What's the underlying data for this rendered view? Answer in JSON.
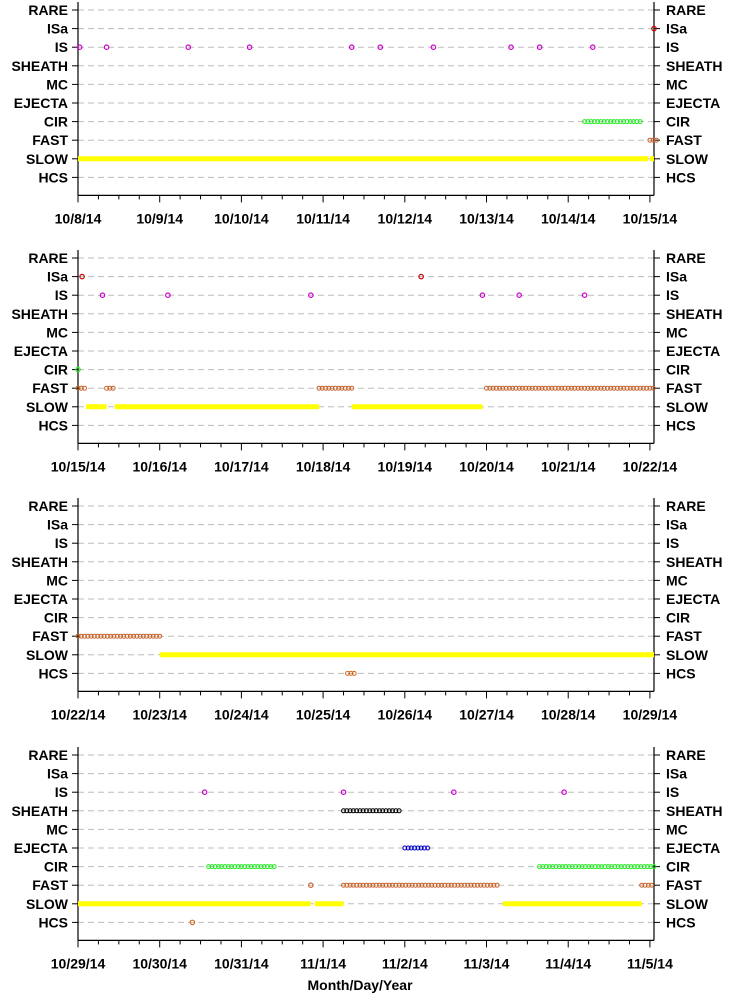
{
  "figure": {
    "xlabel": "Month/Day/Year"
  },
  "categories": [
    "RARE",
    "ISa",
    "IS",
    "SHEATH",
    "MC",
    "EJECTA",
    "CIR",
    "FAST",
    "SLOW",
    "HCS"
  ],
  "colors": {
    "SLOW": "#ffff00",
    "FAST": "#c8642a",
    "CIR": "#22ee22",
    "IS": "#cc00cc",
    "ISa": "#cc0000",
    "SHEATH": "#000000",
    "EJECTA": "#0000cc",
    "HCS": "#d2691e",
    "grid": "#bdbdbd"
  },
  "chart_data": [
    {
      "type": "scatter",
      "xlim": [
        "10/8/14",
        "10/15/14"
      ],
      "x_ticks": [
        "10/8/14",
        "10/9/14",
        "10/10/14",
        "10/11/14",
        "10/12/14",
        "10/13/14",
        "10/14/14",
        "10/15/14"
      ],
      "grid": true,
      "series": [
        {
          "name": "SLOW",
          "segments": [
            [
              0.0,
              6.98
            ],
            [
              7.0,
              7.05
            ]
          ]
        },
        {
          "name": "FAST",
          "segments": [
            [
              7.0,
              7.1
            ]
          ]
        },
        {
          "name": "CIR",
          "segments": [
            [
              6.2,
              6.9
            ]
          ]
        },
        {
          "name": "IS",
          "points": [
            0.02,
            0.35,
            1.35,
            2.1,
            3.35,
            3.7,
            4.35,
            5.3,
            5.65,
            6.3
          ]
        },
        {
          "name": "ISa",
          "points": [
            7.05
          ]
        }
      ]
    },
    {
      "type": "scatter",
      "xlim": [
        "10/15/14",
        "10/22/14"
      ],
      "x_ticks": [
        "10/15/14",
        "10/16/14",
        "10/17/14",
        "10/18/14",
        "10/19/14",
        "10/20/14",
        "10/21/14",
        "10/22/14"
      ],
      "grid": true,
      "series": [
        {
          "name": "SLOW",
          "segments": [
            [
              0.1,
              0.35
            ],
            [
              0.45,
              2.95
            ],
            [
              3.35,
              4.95
            ]
          ]
        },
        {
          "name": "FAST",
          "segments": [
            [
              0.0,
              0.1
            ],
            [
              0.35,
              0.45
            ],
            [
              2.95,
              3.35
            ],
            [
              5.0,
              7.05
            ]
          ]
        },
        {
          "name": "CIR",
          "points": [
            0.0
          ]
        },
        {
          "name": "IS",
          "points": [
            0.3,
            1.1,
            2.85,
            4.95,
            5.4,
            6.2
          ]
        },
        {
          "name": "ISa",
          "points": [
            0.05,
            4.2
          ]
        }
      ]
    },
    {
      "type": "scatter",
      "xlim": [
        "10/22/14",
        "10/29/14"
      ],
      "x_ticks": [
        "10/22/14",
        "10/23/14",
        "10/24/14",
        "10/25/14",
        "10/26/14",
        "10/27/14",
        "10/28/14",
        "10/29/14"
      ],
      "grid": true,
      "series": [
        {
          "name": "SLOW",
          "segments": [
            [
              1.0,
              7.05
            ]
          ]
        },
        {
          "name": "FAST",
          "segments": [
            [
              0.0,
              1.0
            ]
          ]
        },
        {
          "name": "HCS",
          "segments": [
            [
              3.3,
              3.4
            ]
          ]
        }
      ]
    },
    {
      "type": "scatter",
      "xlim": [
        "10/29/14",
        "11/5/14"
      ],
      "x_ticks": [
        "10/29/14",
        "10/30/14",
        "10/31/14",
        "11/1/14",
        "11/2/14",
        "11/3/14",
        "11/4/14",
        "11/5/14"
      ],
      "grid": true,
      "series": [
        {
          "name": "SLOW",
          "segments": [
            [
              0.0,
              2.85
            ],
            [
              2.9,
              3.25
            ],
            [
              5.2,
              6.9
            ]
          ]
        },
        {
          "name": "FAST",
          "segments": [
            [
              3.25,
              5.15
            ],
            [
              6.9,
              7.05
            ]
          ]
        },
        {
          "name": "FAST",
          "points": [
            2.85
          ]
        },
        {
          "name": "CIR",
          "segments": [
            [
              1.6,
              2.4
            ],
            [
              5.65,
              7.05
            ]
          ]
        },
        {
          "name": "IS",
          "points": [
            1.55,
            3.25,
            4.6,
            5.95
          ]
        },
        {
          "name": "SHEATH",
          "segments": [
            [
              3.25,
              3.95
            ]
          ]
        },
        {
          "name": "EJECTA",
          "segments": [
            [
              4.0,
              4.3
            ]
          ]
        },
        {
          "name": "HCS",
          "points": [
            1.4
          ]
        }
      ]
    }
  ]
}
